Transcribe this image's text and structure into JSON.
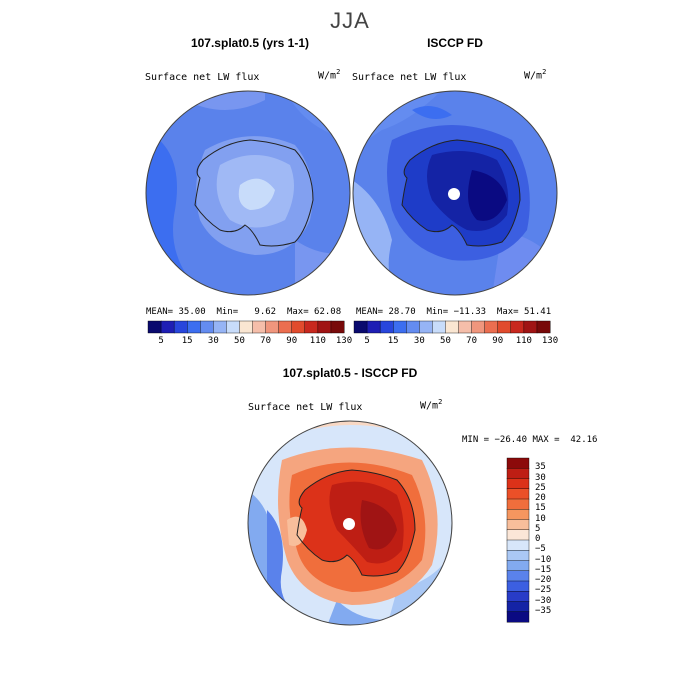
{
  "title": "JJA",
  "panels": [
    {
      "title": "107.splat0.5 (yrs 1-1)",
      "variable": "Surface net LW flux",
      "units": "W/m",
      "units_sup": "2",
      "stats": {
        "mean_label": "MEAN=",
        "mean": "35.00",
        "min_label": "Min=",
        "min": "9.62",
        "max_label": "Max=",
        "max": "62.08"
      }
    },
    {
      "title": "ISCCP FD",
      "variable": "Surface net LW flux",
      "units": "W/m",
      "units_sup": "2",
      "stats": {
        "mean_label": "MEAN=",
        "mean": "28.70",
        "min_label": "Min=",
        "min": "−11.33",
        "max_label": "Max=",
        "max": "51.41"
      }
    },
    {
      "title": "107.splat0.5 - ISCCP FD",
      "variable": "Surface net LW flux",
      "units": "W/m",
      "units_sup": "2",
      "stats_line": "MIN = −26.40 MAX =  42.16"
    }
  ],
  "colorbar_top": {
    "labels": [
      "5",
      "15",
      "30",
      "50",
      "70",
      "90",
      "110",
      "130"
    ],
    "colors": [
      "#0a0a6e",
      "#1e1eb4",
      "#2846dc",
      "#3c6ef0",
      "#648cf0",
      "#96b4f5",
      "#c8dcfa",
      "#fae6d2",
      "#f5beaa",
      "#f0967d",
      "#eb6e50",
      "#e14b2d",
      "#c8281e",
      "#a01414",
      "#780a0a"
    ]
  },
  "colorbar_diff": {
    "labels": [
      "35",
      "30",
      "25",
      "20",
      "15",
      "10",
      "5",
      "0",
      "−5",
      "−10",
      "−15",
      "−20",
      "−25",
      "−30",
      "−35"
    ],
    "colors": [
      "#8c0a0a",
      "#be1e14",
      "#dc3219",
      "#eb5028",
      "#f06e3c",
      "#f5965f",
      "#f8be9b",
      "#fbe6d7",
      "#d7e6fa",
      "#aac8f5",
      "#82aaf0",
      "#5a82eb",
      "#3c5fe1",
      "#283cc8",
      "#1423a5",
      "#0a0a82"
    ]
  }
}
